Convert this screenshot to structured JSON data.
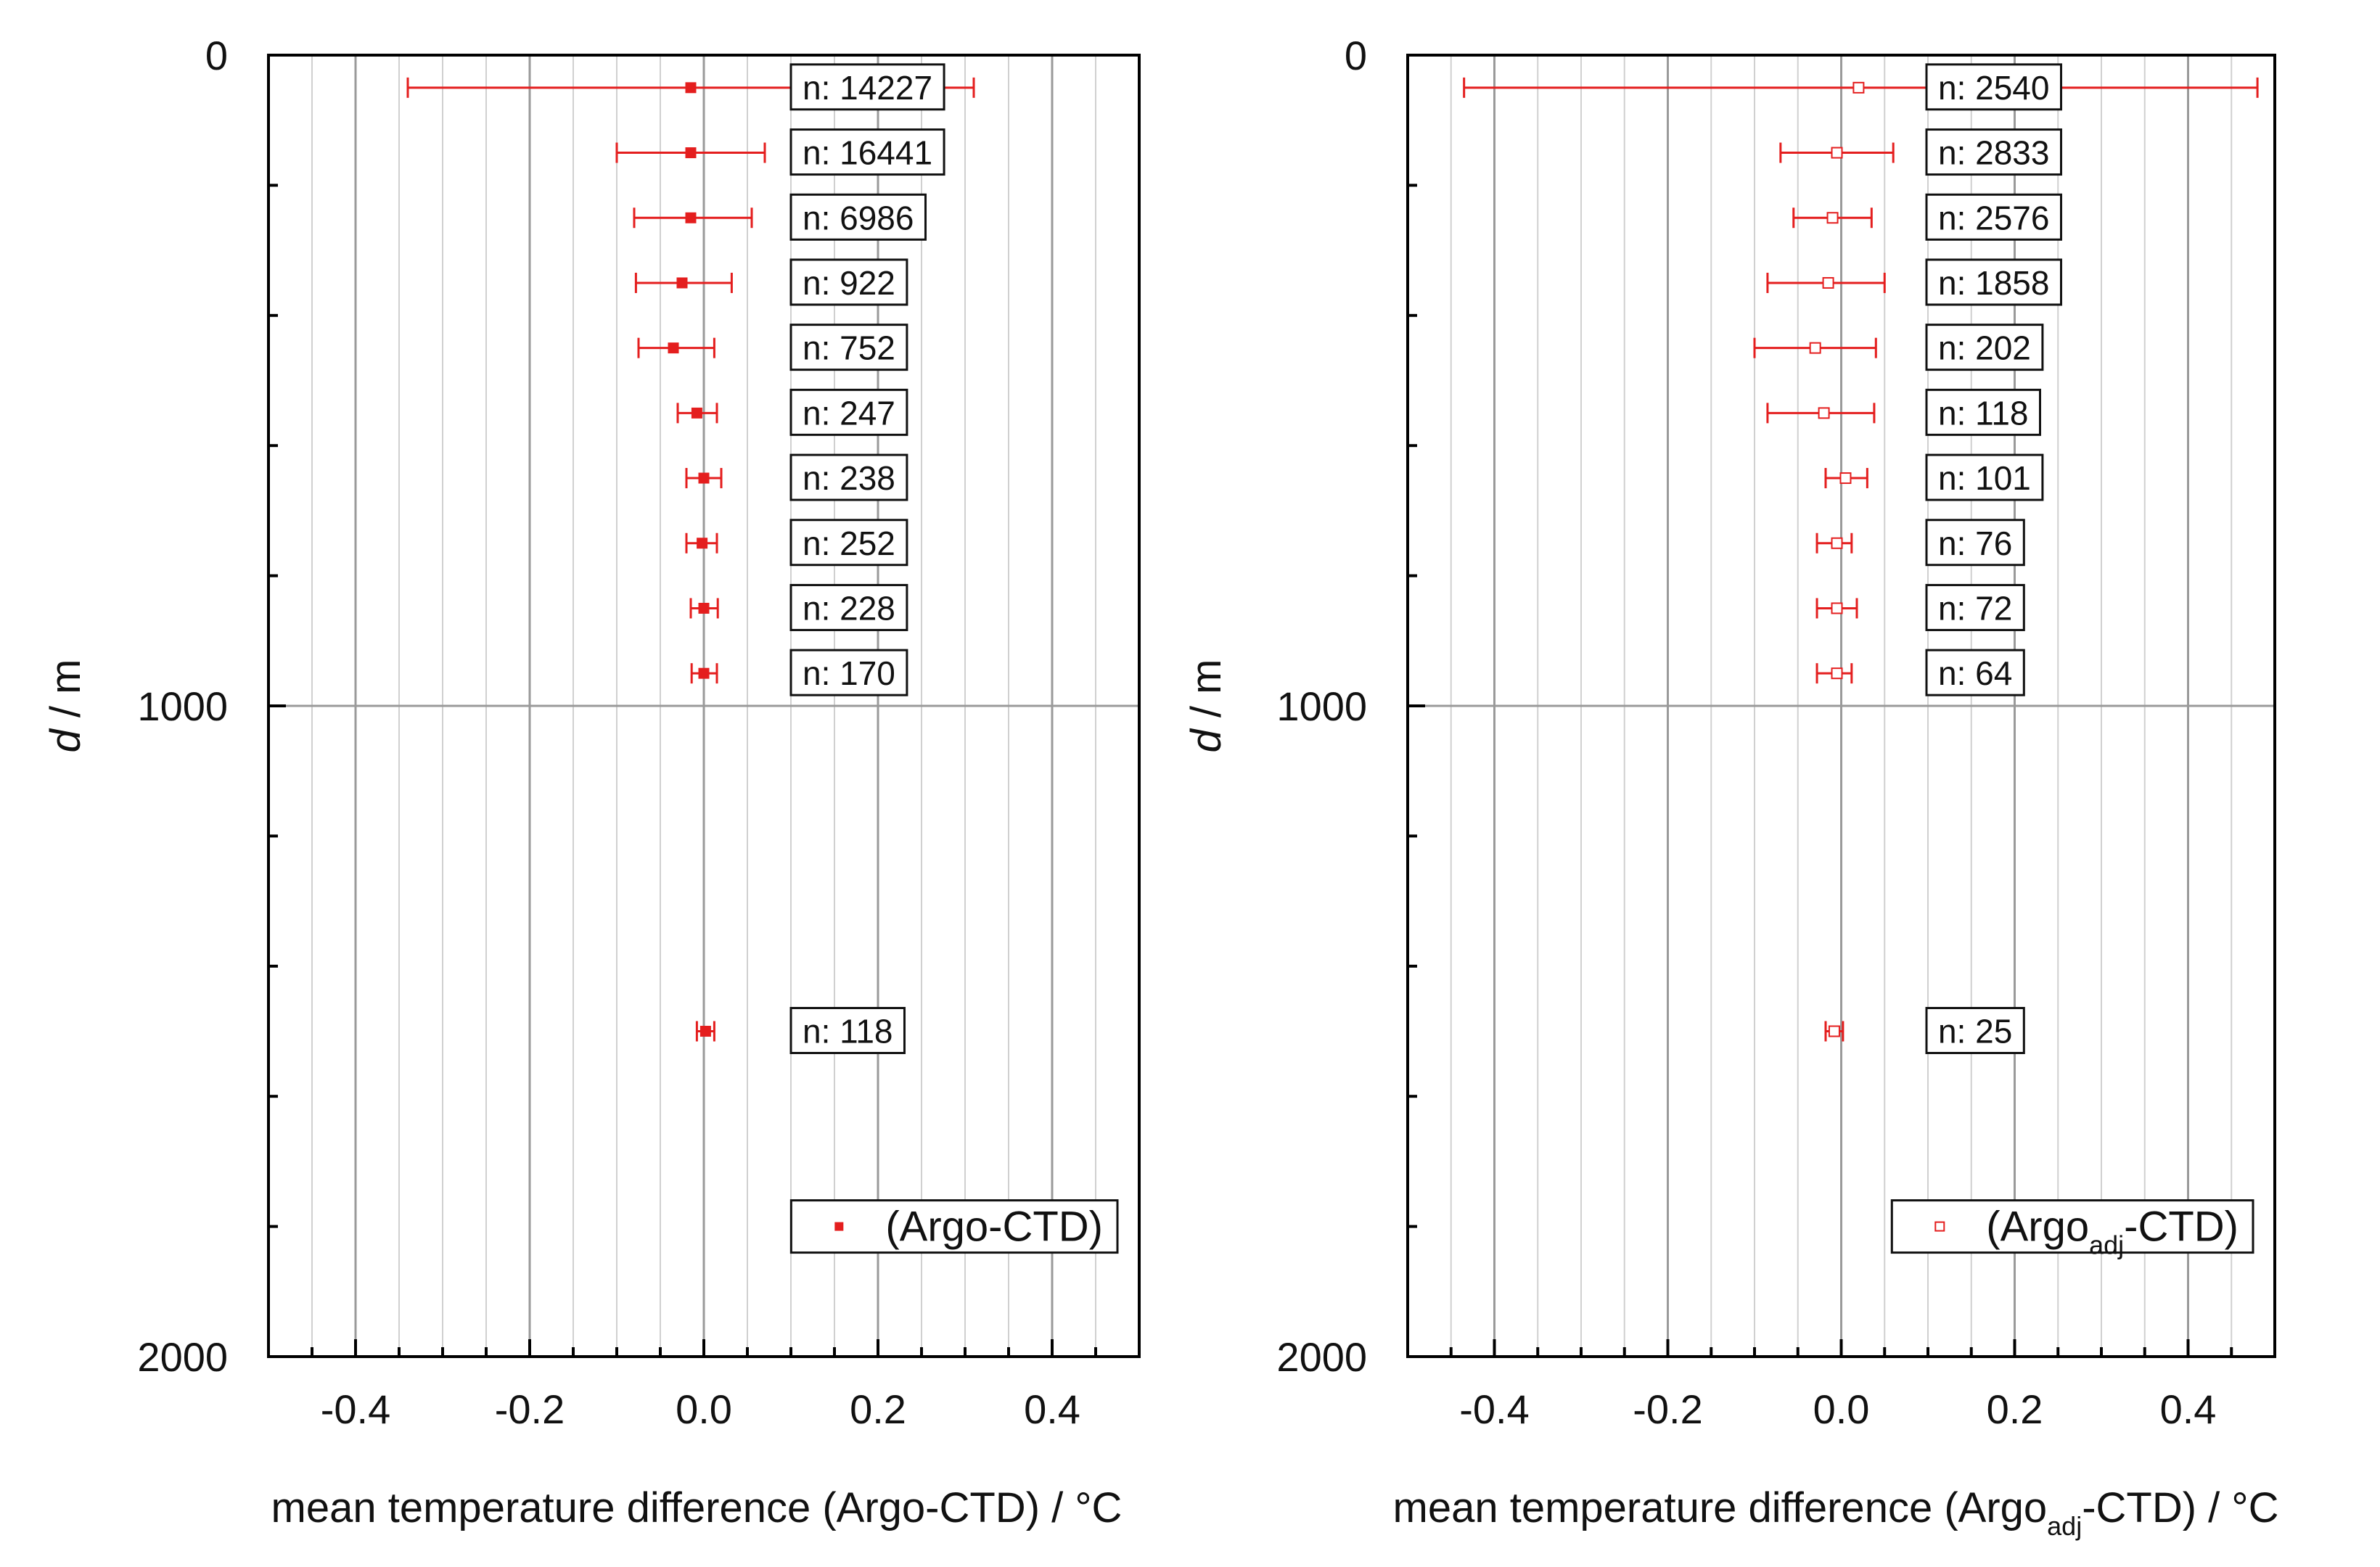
{
  "figure": {
    "description_colors": {
      "series": "#e41e1e",
      "grid_major": "#9a9a9a",
      "grid_minor": "#d0d0d0",
      "axis": "#000000"
    }
  },
  "chart_data": [
    {
      "type": "scatter",
      "orientation": "horizontal-errorbars",
      "xlabel": "mean temperature difference (Argo-CTD) / °C",
      "xlabel_parts": {
        "main": "mean temperature difference (Argo-CTD) / °C",
        "sub": ""
      },
      "ylabel_italic": "d",
      "ylabel_rest": " / m",
      "xlim": [
        -0.5,
        0.5
      ],
      "ylim": [
        2000,
        0
      ],
      "x_ticks": [
        -0.4,
        -0.2,
        0.0,
        0.2,
        0.4
      ],
      "x_tick_labels": [
        "-0.4",
        "-0.2",
        "0.0",
        "0.2",
        "0.4"
      ],
      "y_ticks": [
        0,
        1000,
        2000
      ],
      "y_tick_labels": [
        "0",
        "1000",
        "2000"
      ],
      "grid": true,
      "legend": {
        "label": "(Argo-CTD)",
        "marker": "filled-square",
        "position": "bottom-right"
      },
      "series": [
        {
          "name": "(Argo-CTD)",
          "marker": "filled",
          "points": [
            {
              "depth": 50,
              "mean": -0.015,
              "err_low": -0.34,
              "err_high": 0.31,
              "n_label": "n: 14227"
            },
            {
              "depth": 150,
              "mean": -0.015,
              "err_low": -0.1,
              "err_high": 0.07,
              "n_label": "n: 16441"
            },
            {
              "depth": 250,
              "mean": -0.015,
              "err_low": -0.08,
              "err_high": 0.055,
              "n_label": "n: 6986"
            },
            {
              "depth": 350,
              "mean": -0.025,
              "err_low": -0.078,
              "err_high": 0.032,
              "n_label": "n: 922"
            },
            {
              "depth": 450,
              "mean": -0.035,
              "err_low": -0.075,
              "err_high": 0.012,
              "n_label": "n: 752"
            },
            {
              "depth": 550,
              "mean": -0.008,
              "err_low": -0.03,
              "err_high": 0.015,
              "n_label": "n: 247"
            },
            {
              "depth": 650,
              "mean": 0.0,
              "err_low": -0.02,
              "err_high": 0.02,
              "n_label": "n: 238"
            },
            {
              "depth": 750,
              "mean": -0.002,
              "err_low": -0.02,
              "err_high": 0.015,
              "n_label": "n: 252"
            },
            {
              "depth": 850,
              "mean": 0.0,
              "err_low": -0.015,
              "err_high": 0.016,
              "n_label": "n: 228"
            },
            {
              "depth": 950,
              "mean": 0.0,
              "err_low": -0.014,
              "err_high": 0.015,
              "n_label": "n: 170"
            },
            {
              "depth": 1500,
              "mean": 0.002,
              "err_low": -0.008,
              "err_high": 0.012,
              "n_label": "n: 118"
            }
          ]
        }
      ]
    },
    {
      "type": "scatter",
      "orientation": "horizontal-errorbars",
      "xlabel": "mean temperature difference (Argoadj-CTD) / °C",
      "xlabel_parts": {
        "main_before": "mean temperature difference (Argo",
        "sub": "adj",
        "main_after": "-CTD) / °C"
      },
      "ylabel_italic": "d",
      "ylabel_rest": " / m",
      "xlim": [
        -0.5,
        0.5
      ],
      "ylim": [
        2000,
        0
      ],
      "x_ticks": [
        -0.4,
        -0.2,
        0.0,
        0.2,
        0.4
      ],
      "x_tick_labels": [
        "-0.4",
        "-0.2",
        "0.0",
        "0.2",
        "0.4"
      ],
      "y_ticks": [
        0,
        1000,
        2000
      ],
      "y_tick_labels": [
        "0",
        "1000",
        "2000"
      ],
      "grid": true,
      "legend": {
        "label_before": "(Argo",
        "label_sub": "adj",
        "label_after": "-CTD)",
        "marker": "open-square",
        "position": "bottom-right"
      },
      "series": [
        {
          "name": "(Argoadj-CTD)",
          "marker": "open",
          "points": [
            {
              "depth": 50,
              "mean": 0.02,
              "err_low": -0.435,
              "err_high": 0.48,
              "n_label": "n: 2540"
            },
            {
              "depth": 150,
              "mean": -0.005,
              "err_low": -0.07,
              "err_high": 0.06,
              "n_label": "n: 2833"
            },
            {
              "depth": 250,
              "mean": -0.01,
              "err_low": -0.055,
              "err_high": 0.035,
              "n_label": "n: 2576"
            },
            {
              "depth": 350,
              "mean": -0.015,
              "err_low": -0.085,
              "err_high": 0.05,
              "n_label": "n: 1858"
            },
            {
              "depth": 450,
              "mean": -0.03,
              "err_low": -0.1,
              "err_high": 0.04,
              "n_label": "n: 202"
            },
            {
              "depth": 550,
              "mean": -0.02,
              "err_low": -0.085,
              "err_high": 0.038,
              "n_label": "n: 118"
            },
            {
              "depth": 650,
              "mean": 0.005,
              "err_low": -0.018,
              "err_high": 0.03,
              "n_label": "n: 101"
            },
            {
              "depth": 750,
              "mean": -0.005,
              "err_low": -0.028,
              "err_high": 0.012,
              "n_label": "n: 76"
            },
            {
              "depth": 850,
              "mean": -0.005,
              "err_low": -0.028,
              "err_high": 0.018,
              "n_label": "n: 72"
            },
            {
              "depth": 950,
              "mean": -0.005,
              "err_low": -0.028,
              "err_high": 0.012,
              "n_label": "n: 64"
            },
            {
              "depth": 1500,
              "mean": -0.008,
              "err_low": -0.018,
              "err_high": 0.002,
              "n_label": "n: 25"
            }
          ]
        }
      ]
    }
  ]
}
